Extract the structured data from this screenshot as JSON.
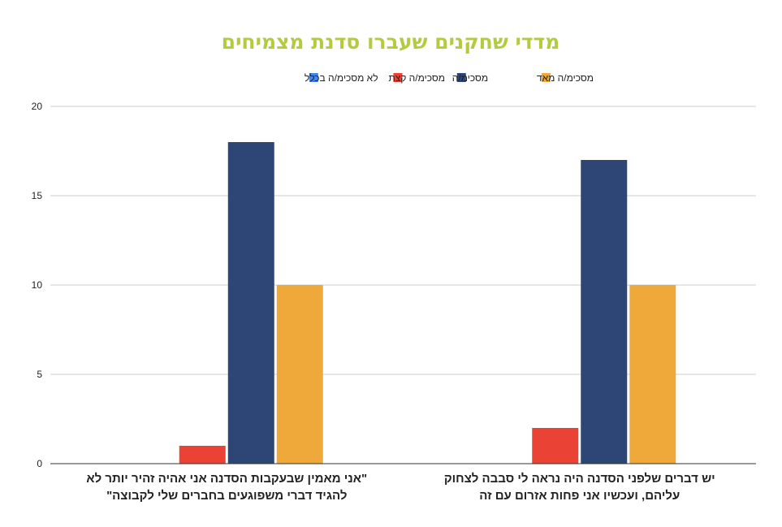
{
  "colors": {
    "title": "#b2cc3e",
    "grid": "#cccccc",
    "axis": "#333333"
  },
  "chart_data": {
    "type": "bar",
    "title": "מדדי שחקנים שעברו סדנת מצמיחים",
    "xlabel": "",
    "ylabel": "",
    "ylim": [
      0,
      20
    ],
    "yticks": [
      0,
      5,
      10,
      15,
      20
    ],
    "grid": true,
    "legend_position": "top",
    "categories": [
      [
        "יש דברים שלפני הסדנה היה נראה לי סבבה לצחוק",
        "עליהם, ועכשיו אני פחות אזרום עם זה"
      ],
      [
        "\"אני מאמין שבעקבות הסדנה אני אהיה זהיר יותר לא",
        "להגיד דברי משפוגעים בחברים שלי לקבוצה\""
      ]
    ],
    "series": [
      {
        "name": "מסכימ/ה מאד",
        "color": "#efa93b",
        "values": [
          10,
          10
        ]
      },
      {
        "name": "מסכימ/ה",
        "color": "#2e4676",
        "values": [
          17,
          18
        ]
      },
      {
        "name": "מסכימ/ה קצת",
        "color": "#ea4335",
        "values": [
          2,
          1
        ]
      },
      {
        "name": "לא מסכימ/ה בכלל",
        "color": "#4285f4",
        "values": [
          0,
          0
        ]
      }
    ]
  }
}
